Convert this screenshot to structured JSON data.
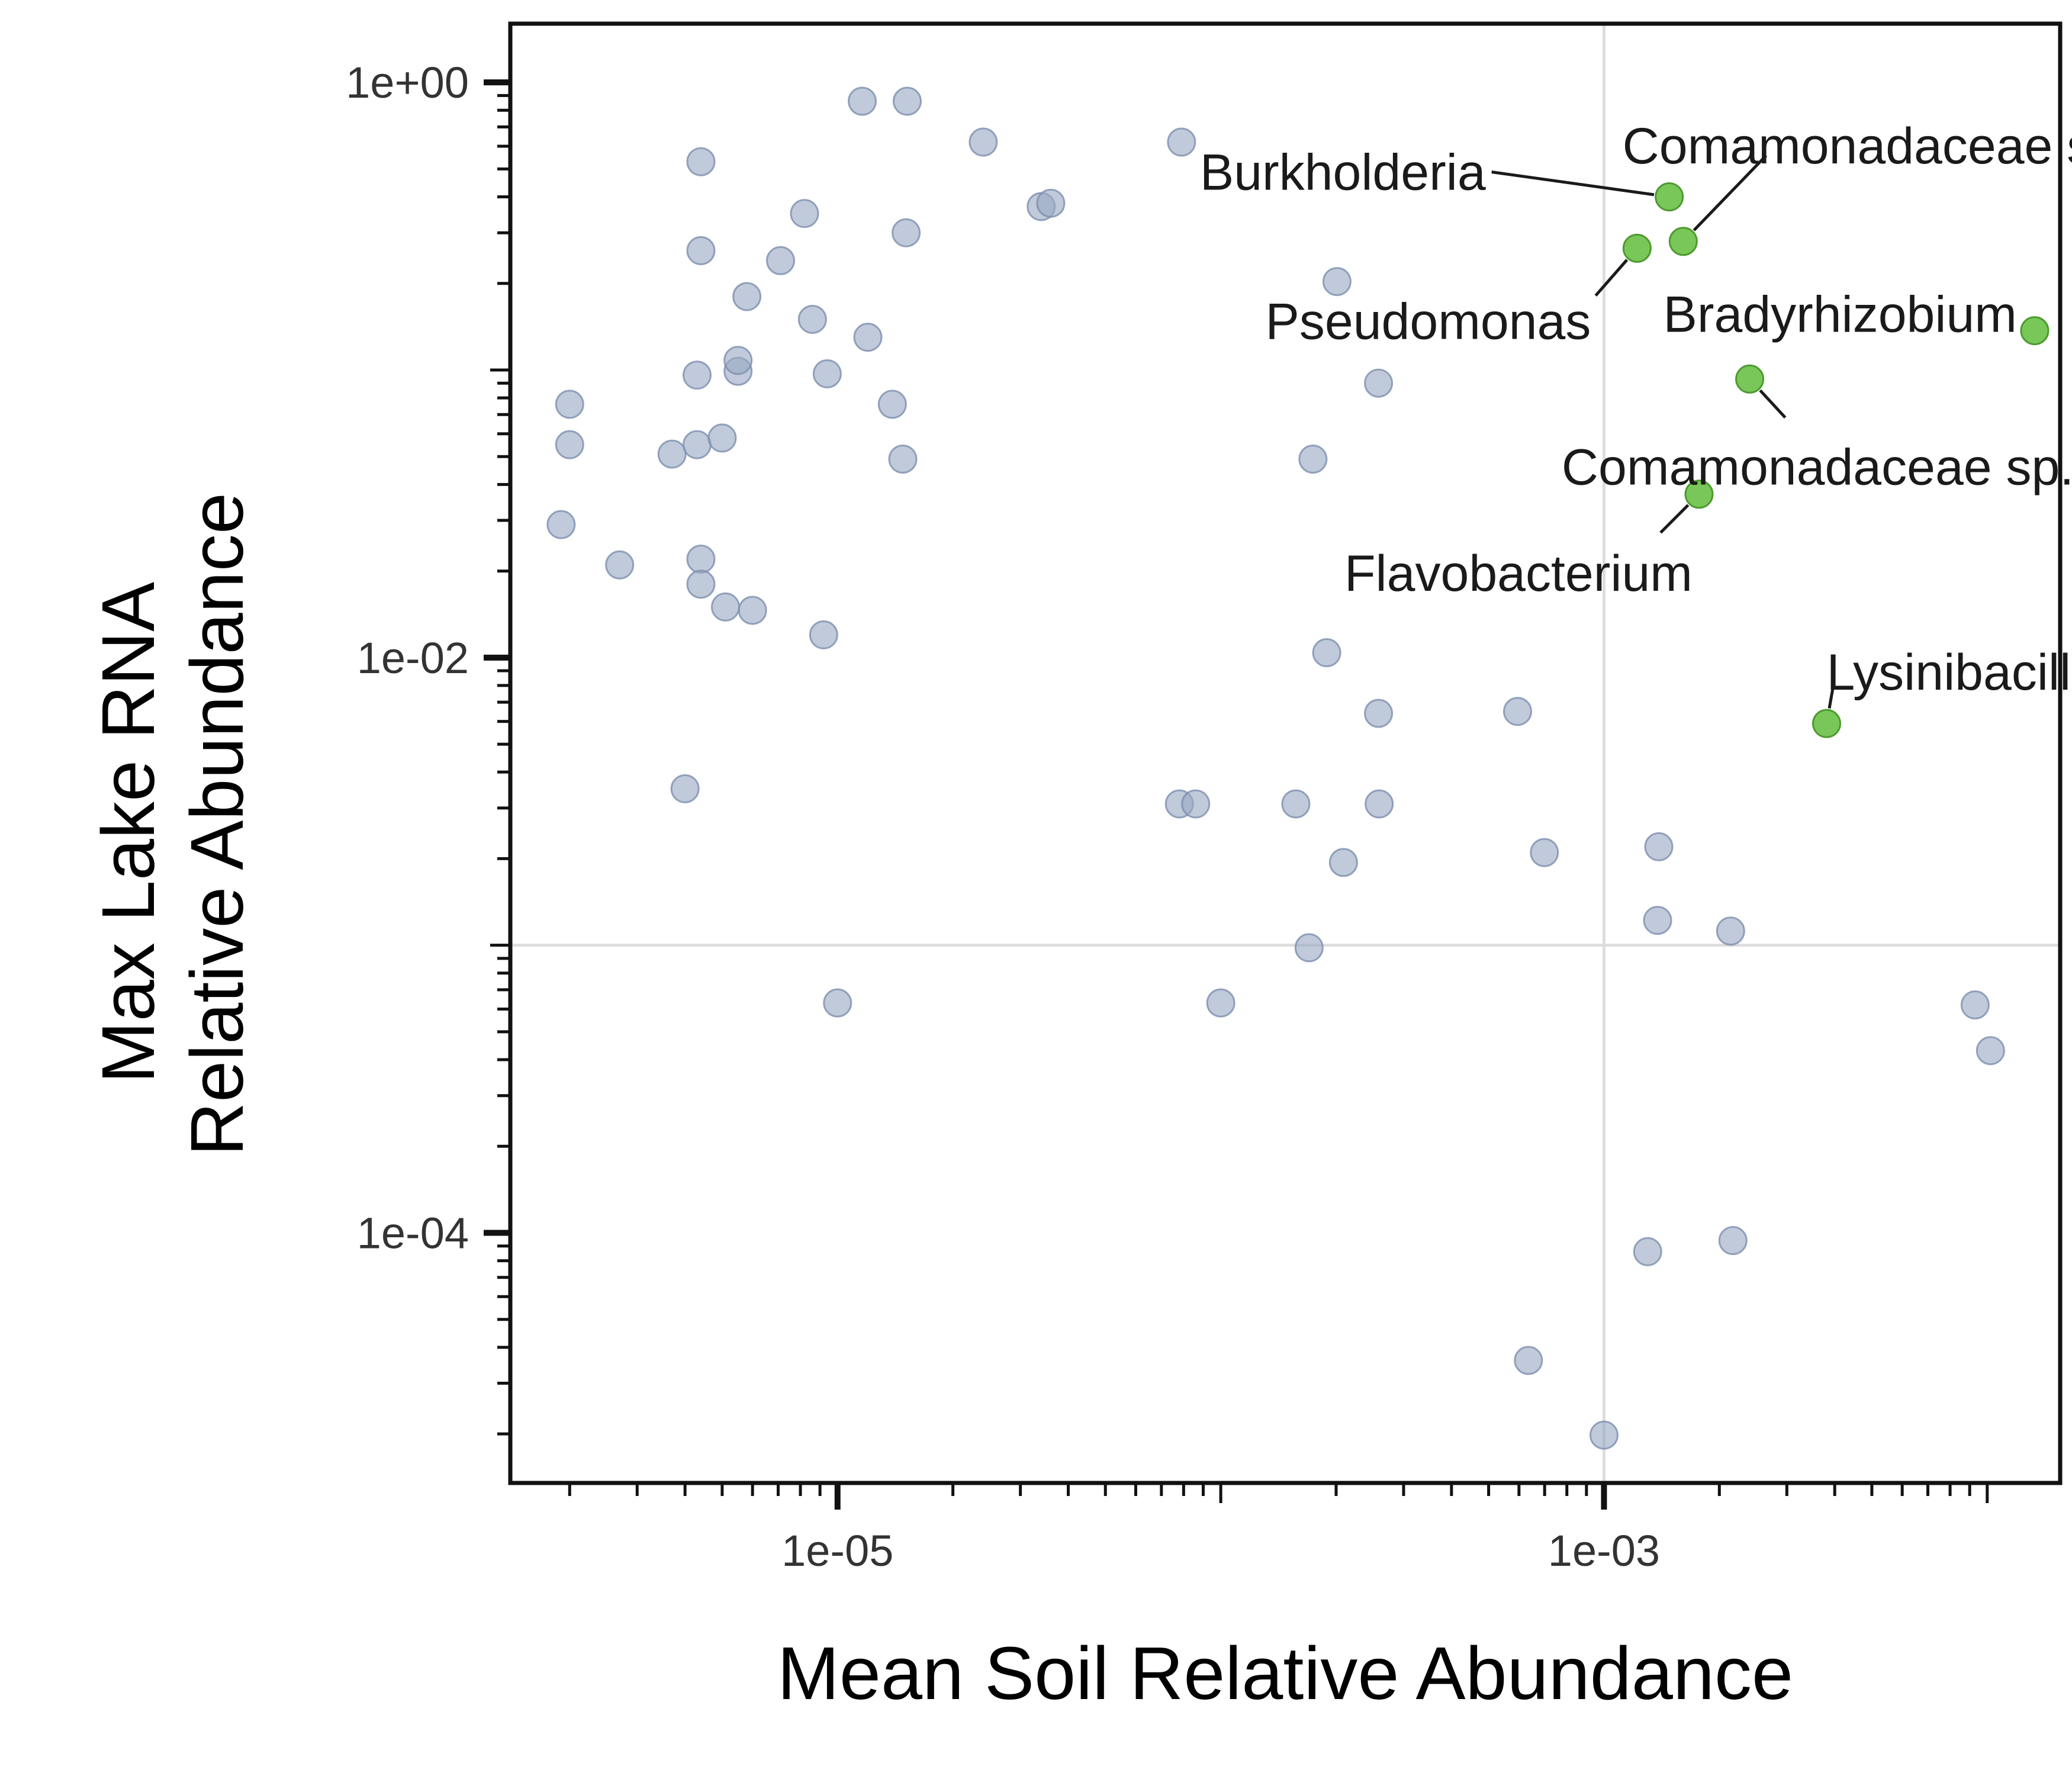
{
  "chart_data": {
    "type": "scatter",
    "xlabel": "Mean Soil Relative Abundance",
    "ylabel_lines": [
      "Max Lake RNA",
      "Relative Abundance"
    ],
    "x_scale": "log10",
    "y_scale": "log10",
    "xlim": [
      1.4e-06,
      0.0155
    ],
    "ylim": [
      1.35e-05,
      1.6
    ],
    "x_ticks": [
      {
        "value": 1e-05,
        "label": "1e-05"
      },
      {
        "value": 0.001,
        "label": "1e-03"
      }
    ],
    "y_ticks": [
      {
        "value": 1,
        "label": "1e+00"
      },
      {
        "value": 0.01,
        "label": "1e-02"
      },
      {
        "value": 0.0001,
        "label": "1e-04"
      }
    ],
    "reference_lines": {
      "x": 0.001,
      "y": 0.001
    },
    "colors": {
      "background_points": "#9aa9c3",
      "highlighted_points": "#6cc24a",
      "reference_line": "#dddddd",
      "axis": "#111111"
    },
    "background_points": [
      [
        2e-06,
        0.076
      ],
      [
        2e-06,
        0.055
      ],
      [
        1.9e-06,
        0.029
      ],
      [
        2.7e-06,
        0.021
      ],
      [
        3.7e-06,
        0.051
      ],
      [
        4.4e-06,
        0.022
      ],
      [
        4.4e-06,
        0.018
      ],
      [
        5.1e-06,
        0.015
      ],
      [
        4e-06,
        0.0035
      ],
      [
        4.3e-06,
        0.055
      ],
      [
        4.4e-06,
        0.53
      ],
      [
        4.4e-06,
        0.26
      ],
      [
        5e-06,
        0.058
      ],
      [
        4.3e-06,
        0.096
      ],
      [
        5.5e-06,
        0.099
      ],
      [
        5.5e-06,
        0.108
      ],
      [
        5.8e-06,
        0.18
      ],
      [
        7.1e-06,
        0.24
      ],
      [
        8.2e-06,
        0.35
      ],
      [
        8.6e-06,
        0.15
      ],
      [
        9.4e-06,
        0.097
      ],
      [
        9.2e-06,
        0.012
      ],
      [
        6e-06,
        0.0146
      ],
      [
        1.16e-05,
        0.86
      ],
      [
        1.52e-05,
        0.86
      ],
      [
        1.2e-05,
        0.13
      ],
      [
        1.39e-05,
        0.076
      ],
      [
        1.48e-05,
        0.049
      ],
      [
        1.51e-05,
        0.3
      ],
      [
        2.4e-05,
        0.62
      ],
      [
        3.4e-05,
        0.37
      ],
      [
        3.6e-05,
        0.38
      ],
      [
        7.9e-05,
        0.62
      ],
      [
        7.8e-05,
        0.0031
      ],
      [
        8.6e-05,
        0.0031
      ],
      [
        0.000157,
        0.0031
      ],
      [
        0.00017,
        0.00098
      ],
      [
        0.000209,
        0.00194
      ],
      [
        0.000259,
        0.0031
      ],
      [
        0.000258,
        0.0064
      ],
      [
        0.000258,
        0.09
      ],
      [
        0.000189,
        0.0104
      ],
      [
        0.000174,
        0.049
      ],
      [
        0.000201,
        0.203
      ],
      [
        0.000595,
        0.0065
      ],
      [
        0.000699,
        0.0021
      ],
      [
        0.00139,
        0.0022
      ],
      [
        0.00138,
        0.00122
      ],
      [
        0.00214,
        0.00112
      ],
      [
        0.00217,
        9.4e-05
      ],
      [
        0.000635,
        3.6e-05
      ],
      [
        0.0013,
        8.6e-05
      ],
      [
        0.001,
        1.98e-05
      ],
      [
        0.0093,
        0.00062
      ],
      [
        0.0102,
        0.00043
      ],
      [
        1e-05,
        0.00063
      ],
      [
        0.0001,
        0.00063
      ]
    ],
    "highlighted_points": [
      {
        "name": "Burkholderia",
        "x": 0.00148,
        "y": 0.4
      },
      {
        "name": "Comamonadaceae sp.",
        "x": 0.00161,
        "y": 0.28
      },
      {
        "name": "Pseudomonas",
        "x": 0.00122,
        "y": 0.265
      },
      {
        "name": "Bradyrhizobium",
        "x": 0.0133,
        "y": 0.137
      },
      {
        "name": "Comamonadaceae sp.",
        "x": 0.0024,
        "y": 0.093
      },
      {
        "name": "Flavobacterium",
        "x": 0.00177,
        "y": 0.037
      },
      {
        "name": "Lysinibacillus",
        "x": 0.00381,
        "y": 0.0059
      }
    ],
    "annotations": [
      {
        "text": "Burkholderia",
        "point": 0,
        "anchor": "end",
        "dx": -310,
        "dy": -40,
        "line_to_dx": -300,
        "line_to_dy": -42
      },
      {
        "text": "Comamonadaceae sp.",
        "point": 1,
        "anchor": "middle",
        "dx": 330,
        "dy": -160,
        "line_to_dx": 140,
        "line_to_dy": -145
      },
      {
        "text": "Pseudomonas",
        "point": 2,
        "anchor": "end",
        "dx": -78,
        "dy": 125,
        "line_to_dx": -70,
        "line_to_dy": 80
      },
      {
        "text": "Bradyrhizobium",
        "point": 3,
        "anchor": "end",
        "dx": -30,
        "dy": -26,
        "line_to_dx": null,
        "line_to_dy": null
      },
      {
        "text": "Comamonadaceae sp.",
        "point": 4,
        "anchor": "middle",
        "dx": 115,
        "dy": 150,
        "line_to_dx": 60,
        "line_to_dy": 65
      },
      {
        "text": "Flavobacterium",
        "point": 5,
        "anchor": "middle",
        "dx": -305,
        "dy": 135,
        "line_to_dx": -65,
        "line_to_dy": 65
      },
      {
        "text": "Lysinibacillus",
        "point": 6,
        "anchor": "start",
        "dx": 0,
        "dy": -85,
        "line_to_dx": 12,
        "line_to_dy": -68
      }
    ]
  }
}
